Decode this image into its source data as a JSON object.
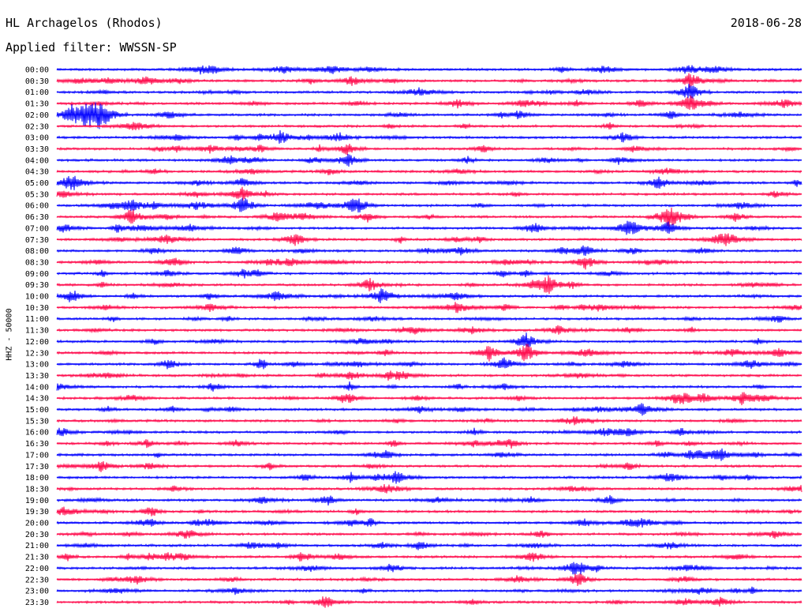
{
  "header": {
    "station": "HL Archagelos (Rhodos)",
    "filter": "Applied filter: WWSSN-SP",
    "date": "2018-06-28"
  },
  "colors": {
    "even_trace": "#0b0bff",
    "odd_trace": "#ff1050",
    "text": "#000000"
  },
  "chart_data": {
    "type": "line",
    "title": "HL Archagelos (Rhodos)",
    "ylabel": "HHZ - 50000",
    "traces": [
      "00:00",
      "00:30",
      "01:00",
      "01:30",
      "02:00",
      "02:30",
      "03:00",
      "03:30",
      "04:00",
      "04:30",
      "05:00",
      "05:30",
      "06:00",
      "06:30",
      "07:00",
      "07:30",
      "08:00",
      "08:30",
      "09:00",
      "09:30",
      "10:00",
      "10:30",
      "11:00",
      "11:30",
      "12:00",
      "12:30",
      "13:00",
      "13:30",
      "14:00",
      "14:30",
      "15:00",
      "15:30",
      "16:00",
      "16:30",
      "17:00",
      "17:30",
      "18:00",
      "18:30",
      "19:00",
      "19:30",
      "20:00",
      "20:30",
      "21:00",
      "21:30",
      "22:00",
      "22:30",
      "23:00",
      "23:30"
    ],
    "trace_color_order": [
      "blue",
      "red"
    ],
    "events": [
      [
        0.85,
        0,
        1.5
      ],
      [
        0.85,
        1,
        3
      ],
      [
        0.85,
        2,
        4
      ],
      [
        0.85,
        3,
        4
      ],
      [
        0.02,
        4,
        3.5
      ],
      [
        0.04,
        4,
        3
      ],
      [
        0.06,
        4,
        2.5
      ],
      [
        0.3,
        6,
        3
      ],
      [
        0.38,
        6,
        2
      ],
      [
        0.76,
        6,
        2
      ],
      [
        0.39,
        7,
        2.5
      ],
      [
        0.39,
        8,
        3
      ],
      [
        0.25,
        11,
        3
      ],
      [
        0.25,
        12,
        4
      ],
      [
        0.1,
        12,
        2.5
      ],
      [
        0.1,
        13,
        3
      ],
      [
        0.4,
        12,
        2.5
      ],
      [
        0.82,
        13,
        4
      ],
      [
        0.82,
        14,
        3
      ],
      [
        0.64,
        14,
        2.5
      ],
      [
        0.32,
        15,
        3
      ],
      [
        0.71,
        16,
        2.5
      ],
      [
        0.71,
        17,
        3
      ],
      [
        0.25,
        18,
        2
      ],
      [
        0.42,
        19,
        3
      ],
      [
        0.66,
        19,
        4
      ],
      [
        0.63,
        24,
        3.5
      ],
      [
        0.63,
        25,
        4.5
      ],
      [
        0.58,
        25,
        3.5
      ],
      [
        0.6,
        26,
        3
      ],
      [
        0.15,
        26,
        2
      ],
      [
        0.92,
        29,
        2.5
      ],
      [
        0.89,
        34,
        3
      ],
      [
        0.06,
        35,
        2.5
      ],
      [
        0.7,
        44,
        2.5
      ],
      [
        0.7,
        45,
        3
      ],
      [
        0.89,
        47,
        2
      ],
      [
        0.45,
        44,
        2
      ]
    ]
  }
}
